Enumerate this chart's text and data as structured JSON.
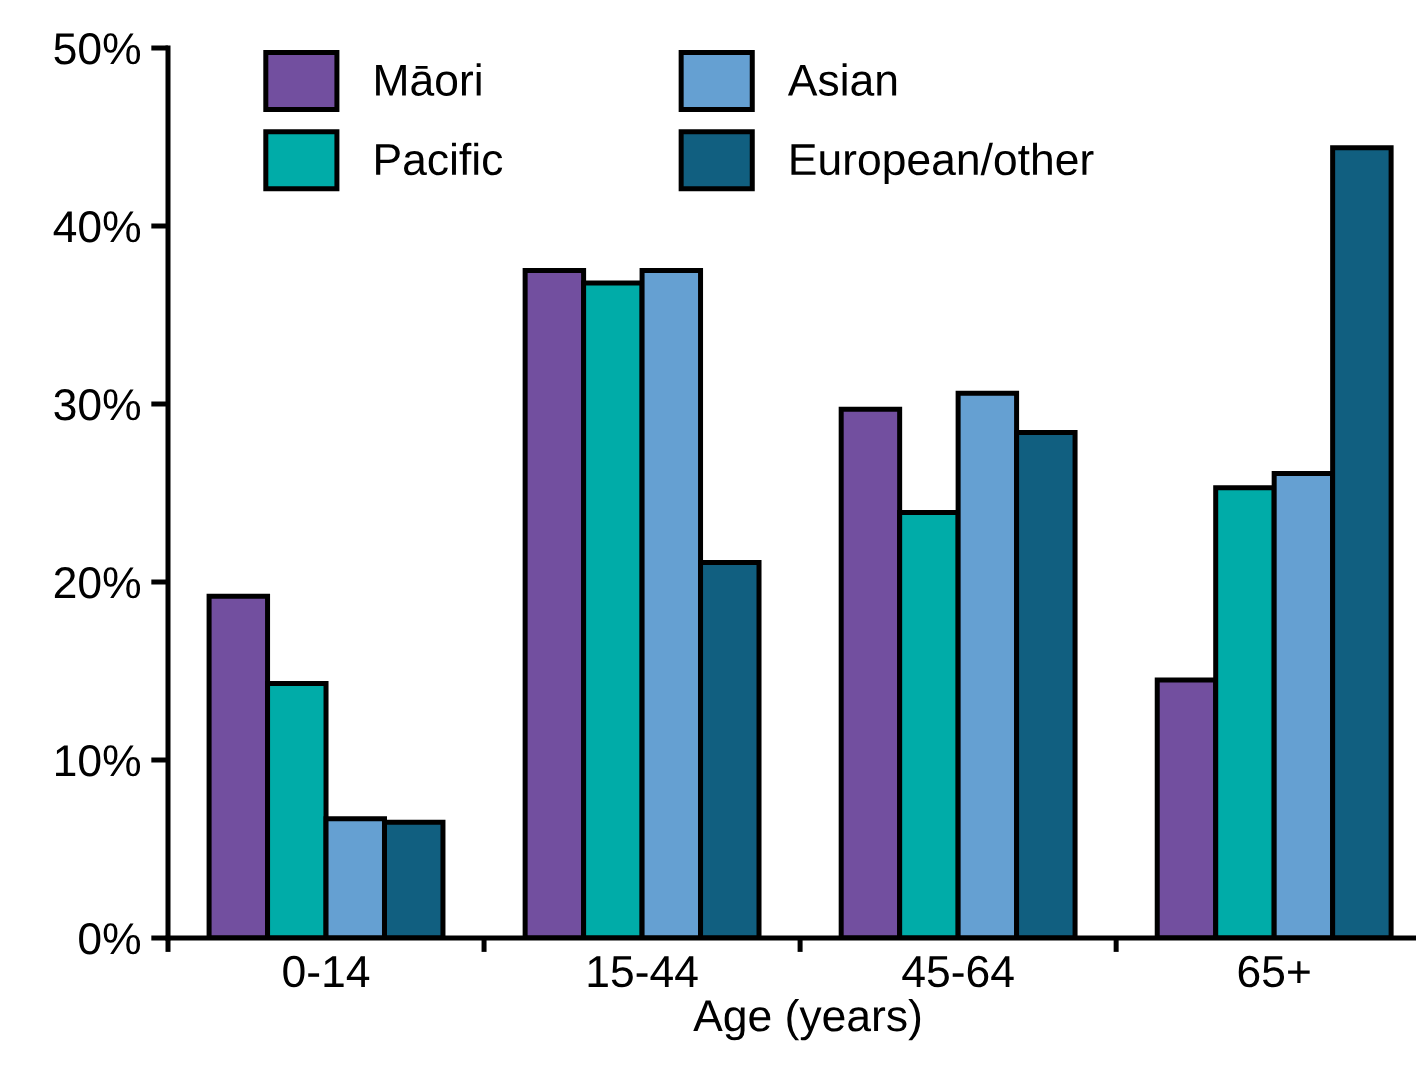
{
  "chart_data": {
    "type": "bar",
    "xlabel": "Age (years)",
    "categories": [
      "0-14",
      "15-44",
      "45-64",
      "65+"
    ],
    "series": [
      {
        "name": "Māori",
        "color": "#724f9f",
        "values": [
          19.2,
          37.5,
          29.7,
          14.5
        ]
      },
      {
        "name": "Pacific",
        "color": "#00aca8",
        "values": [
          14.3,
          36.8,
          23.9,
          25.3
        ]
      },
      {
        "name": "Asian",
        "color": "#65a0d2",
        "values": [
          6.7,
          37.5,
          30.6,
          26.1
        ]
      },
      {
        "name": "European/other",
        "color": "#115f80",
        "values": [
          6.5,
          21.1,
          28.4,
          44.4
        ]
      }
    ],
    "ylim": [
      0,
      50
    ],
    "yticks": [
      {
        "value": 0,
        "label": "0%"
      },
      {
        "value": 10,
        "label": "10%"
      },
      {
        "value": 20,
        "label": "20%"
      },
      {
        "value": 30,
        "label": "30%"
      },
      {
        "value": 40,
        "label": "40%"
      },
      {
        "value": 50,
        "label": "50%"
      }
    ],
    "grid": false,
    "legend": "top"
  }
}
